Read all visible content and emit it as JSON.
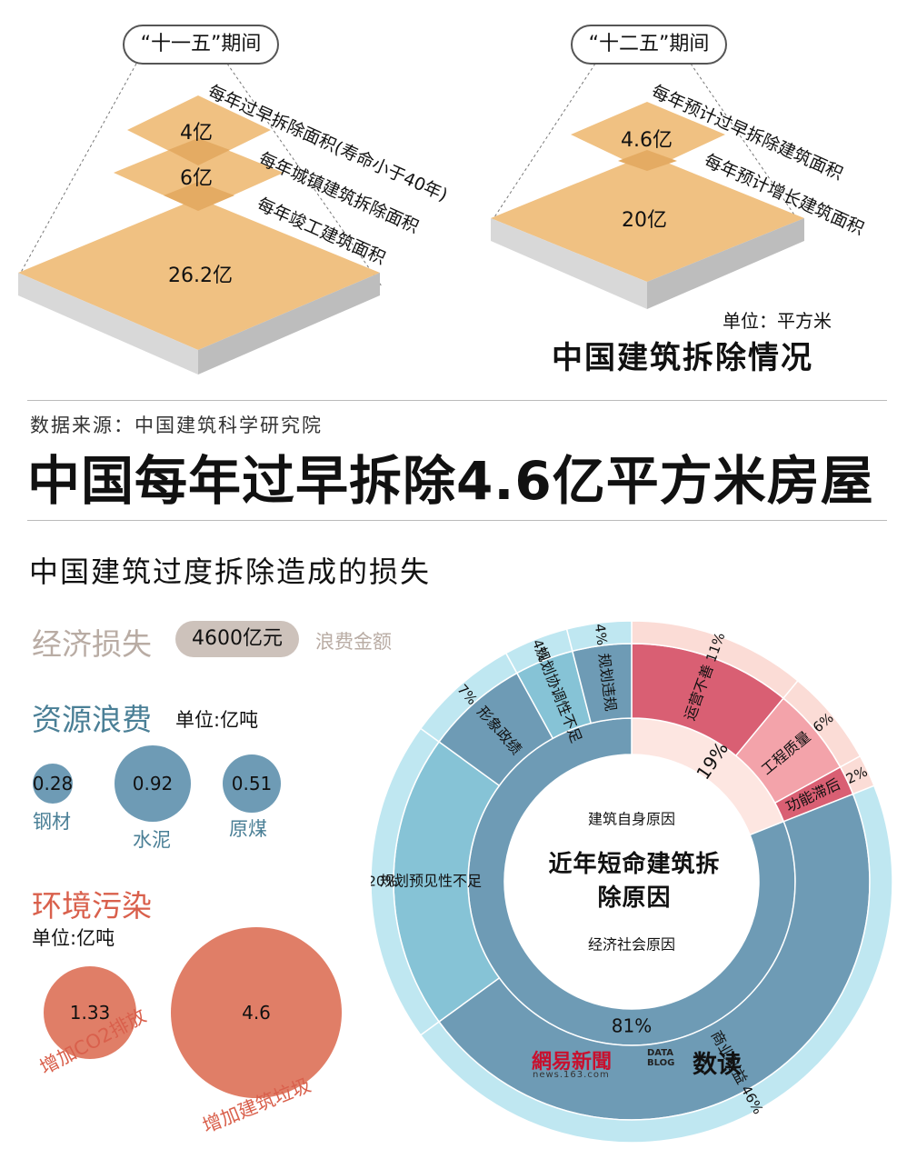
{
  "top_left": {
    "period": "“十一五”期间",
    "layers": [
      {
        "value": "4亿",
        "label": "每年过早拆除面积(寿命小于40年)"
      },
      {
        "value": "6亿",
        "label": "每年城镇建筑拆除面积"
      },
      {
        "value": "26.2亿",
        "label": "每年竣工建筑面积"
      }
    ]
  },
  "top_right": {
    "period": "“十二五”期间",
    "layers": [
      {
        "value": "4.6亿",
        "label": "每年预计过早拆除建筑面积"
      },
      {
        "value": "20亿",
        "label": "每年预计增长建筑面积"
      }
    ],
    "unit": "单位：平方米",
    "subtitle": "中国建筑拆除情况"
  },
  "source": "数据来源：中国建筑科学研究院",
  "headline": "中国每年过早拆除4.6亿平方米房屋",
  "section_title": "中国建筑过度拆除造成的损失",
  "economic": {
    "label": "经济损失",
    "amount": "4600亿元",
    "desc": "浪费金额"
  },
  "resource": {
    "label": "资源浪费",
    "unit": "单位:亿吨",
    "items": [
      {
        "value": "0.28",
        "name": "钢材"
      },
      {
        "value": "0.92",
        "name": "水泥"
      },
      {
        "value": "0.51",
        "name": "原煤"
      }
    ]
  },
  "environment": {
    "label": "环境污染",
    "unit": "单位:亿吨",
    "items": [
      {
        "value": "1.33",
        "name": "增加CO2排放"
      },
      {
        "value": "4.6",
        "name": "增加建筑垃圾"
      }
    ]
  },
  "chart_data": {
    "type": "pie",
    "title": "近年短命建筑拆除原因",
    "inner": [
      {
        "name": "建筑自身原因",
        "value": 19,
        "label": "19%"
      },
      {
        "name": "经济社会原因",
        "value": 81,
        "label": "81%"
      }
    ],
    "outer": [
      {
        "name": "运营不善",
        "value": 11,
        "label": "11%",
        "parent": "建筑自身原因"
      },
      {
        "name": "工程质量",
        "value": 6,
        "label": "6%",
        "parent": "建筑自身原因"
      },
      {
        "name": "功能滞后",
        "value": 2,
        "label": "2%",
        "parent": "建筑自身原因"
      },
      {
        "name": "商业利益",
        "value": 46,
        "label": "46%",
        "parent": "经济社会原因"
      },
      {
        "name": "规划预见性不足",
        "value": 20,
        "label": "20%",
        "parent": "经济社会原因"
      },
      {
        "name": "形象政绩",
        "value": 7,
        "label": "7%",
        "parent": "经济社会原因"
      },
      {
        "name": "规划协调性不足",
        "value": 4,
        "label": "4%",
        "parent": "经济社会原因"
      },
      {
        "name": "规划违规",
        "value": 4,
        "label": "4%",
        "parent": "经济社会原因"
      }
    ],
    "colors": {
      "self_inner": "#fde6e1",
      "social_inner": "#6e9bb5",
      "运营不善": "#d95f73",
      "工程质量": "#f3a3aa",
      "功能滞后": "#d95f73",
      "商业利益": "#6e9bb5",
      "规划预见性不足": "#86c3d6",
      "形象政绩": "#6e9bb5",
      "规划协调性不足": "#86c3d6",
      "规划违规": "#6e9bb5",
      "outer_ring_blue": "#bfe7f1",
      "outer_ring_pink": "#fbdcd6"
    }
  },
  "logos": {
    "netease": "網易新聞",
    "netease_sub": "news.163.com",
    "datablog": "DATA BLOG",
    "shudu": "数读"
  }
}
